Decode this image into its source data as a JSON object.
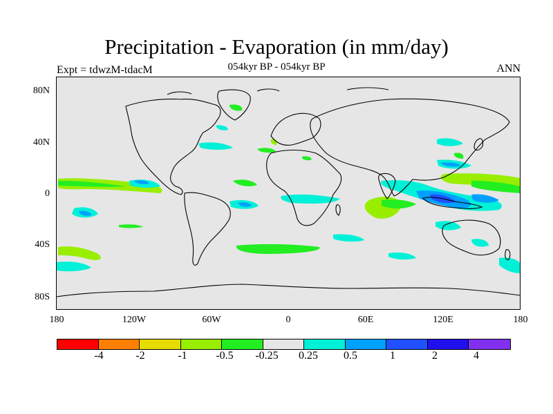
{
  "figure": {
    "title": "Precipitation - Evaporation (in mm/day)",
    "subtitle": "054kyr BP - 054kyr BP",
    "left_label": "Expt = tdwzM-tdacM",
    "right_label": "ANN"
  },
  "axes": {
    "y_ticks": [
      "80N",
      "40N",
      "0",
      "40S",
      "80S"
    ],
    "x_ticks": [
      "180",
      "120W",
      "60W",
      "0",
      "60E",
      "120E",
      "180"
    ]
  },
  "colorbar": {
    "colors": [
      "#ff0000",
      "#ff8000",
      "#e6dc00",
      "#99ee00",
      "#22ee22",
      "#e6e6e6",
      "#00f0d8",
      "#00a0ff",
      "#2050ff",
      "#2010ee",
      "#8030ee"
    ],
    "labels": [
      "-4",
      "-2",
      "-1",
      "-0.5",
      "-0.25",
      "0.25",
      "0.5",
      "1",
      "2",
      "4"
    ]
  },
  "colors": {
    "background": "#e6e6e6",
    "positive_light": "#00f0d8",
    "positive_mid": "#00a0ff",
    "positive_strong": "#2050ff",
    "negative_light": "#22ee22",
    "negative_mid": "#99ee00"
  },
  "chart_data": {
    "type": "heatmap",
    "title": "Precipitation - Evaporation (in mm/day)",
    "subtitle": "054kyr BP - 054kyr BP",
    "x_range": [
      -180,
      180
    ],
    "y_range": [
      -90,
      90
    ],
    "x_ticks": [
      -180,
      -120,
      -60,
      0,
      60,
      120,
      180
    ],
    "y_ticks": [
      80,
      40,
      0,
      -40,
      -80
    ],
    "levels": [
      -4,
      -2,
      -1,
      -0.5,
      -0.25,
      0.25,
      0.5,
      1,
      2,
      4
    ],
    "regions": [
      {
        "lon": [
          -180,
          -140
        ],
        "lat": [
          12,
          5
        ],
        "level": -0.5
      },
      {
        "lon": [
          -140,
          -100
        ],
        "lat": [
          10,
          4
        ],
        "level": -0.5
      },
      {
        "lon": [
          -180,
          -120
        ],
        "lat": [
          -40,
          -48
        ],
        "level": -0.5
      },
      {
        "lon": [
          -120,
          -100
        ],
        "lat": [
          -22,
          -28
        ],
        "level": -0.25
      },
      {
        "lon": [
          -70,
          -40
        ],
        "lat": [
          -40,
          -46
        ],
        "level": -0.25
      },
      {
        "lon": [
          -40,
          10
        ],
        "lat": [
          -42,
          -46
        ],
        "level": -0.25
      },
      {
        "lon": [
          70,
          90
        ],
        "lat": [
          -18,
          -22
        ],
        "level": -0.5
      },
      {
        "lon": [
          55,
          80
        ],
        "lat": [
          -5,
          -20
        ],
        "level": -0.5
      },
      {
        "lon": [
          120,
          180
        ],
        "lat": [
          15,
          5
        ],
        "level": -0.5
      },
      {
        "lon": [
          -60,
          -40
        ],
        "lat": [
          40,
          35
        ],
        "level": 0.5
      },
      {
        "lon": [
          -160,
          -140
        ],
        "lat": [
          -12,
          -18
        ],
        "level": 1
      },
      {
        "lon": [
          -160,
          -130
        ],
        "lat": [
          10,
          5
        ],
        "level": 1
      },
      {
        "lon": [
          -30,
          -10
        ],
        "lat": [
          -5,
          -15
        ],
        "level": 0.5
      },
      {
        "lon": [
          100,
          140
        ],
        "lat": [
          10,
          -10
        ],
        "level": 1
      },
      {
        "lon": [
          120,
          150
        ],
        "lat": [
          -5,
          -15
        ],
        "level": 2
      },
      {
        "lon": [
          -180,
          -160
        ],
        "lat": [
          -50,
          -60
        ],
        "level": 0.5
      },
      {
        "lon": [
          160,
          180
        ],
        "lat": [
          -50,
          -58
        ],
        "level": 0.5
      },
      {
        "lon": [
          0,
          60
        ],
        "lat": [
          -30,
          -38
        ],
        "level": 0.5
      }
    ]
  }
}
